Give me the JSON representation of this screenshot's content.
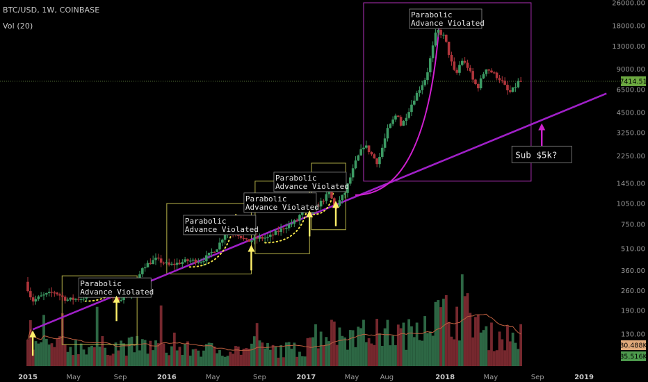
{
  "header": {
    "symbol": "BTC/USD, 1W, COINBASE",
    "indicator": "Vol (20)"
  },
  "colors": {
    "background": "#000000",
    "up": "#3c9a63",
    "down": "#b0353b",
    "trendline": "#a020c8",
    "annotation_box_yellow": "#b8b44a",
    "annotation_box_magenta": "#b030b8",
    "arrow_yellow": "#fff06a",
    "arrow_magenta": "#cc22cc",
    "price_badge": "#6ca840",
    "volume_ma": "#c06040"
  },
  "chart_data": {
    "type": "candlestick",
    "title": "BTC/USD, 1W, COINBASE",
    "y_scale": "log",
    "y_ticks": [
      "26000.00",
      "18000.00",
      "13000.00",
      "9000.00",
      "6500.00",
      "4500.00",
      "3250.00",
      "2250.00",
      "1450.00",
      "1050.00",
      "750.00",
      "510.00",
      "360.00",
      "260.00",
      "190.00",
      "130.00"
    ],
    "x_ticks": [
      {
        "label": "2015",
        "year": true,
        "date": "2015-01-01"
      },
      {
        "label": "May",
        "year": false,
        "date": "2015-05-01"
      },
      {
        "label": "Sep",
        "year": false,
        "date": "2015-09-01"
      },
      {
        "label": "2016",
        "year": true,
        "date": "2016-01-01"
      },
      {
        "label": "May",
        "year": false,
        "date": "2016-05-01"
      },
      {
        "label": "Sep",
        "year": false,
        "date": "2016-09-01"
      },
      {
        "label": "2017",
        "year": true,
        "date": "2017-01-01"
      },
      {
        "label": "May",
        "year": false,
        "date": "2017-05-01"
      },
      {
        "label": "Aug",
        "year": false,
        "date": "2017-08-01"
      },
      {
        "label": "2018",
        "year": true,
        "date": "2018-01-01"
      },
      {
        "label": "May",
        "year": false,
        "date": "2018-05-01"
      },
      {
        "label": "Sep",
        "year": false,
        "date": "2018-09-01"
      },
      {
        "label": "2019",
        "year": true,
        "date": "2019-01-01"
      }
    ],
    "price_path_key": [
      [
        "2015-01-01",
        300
      ],
      [
        "2015-01-20",
        220
      ],
      [
        "2015-02-15",
        240
      ],
      [
        "2015-03-20",
        255
      ],
      [
        "2015-04-20",
        225
      ],
      [
        "2015-06-01",
        230
      ],
      [
        "2015-07-10",
        280
      ],
      [
        "2015-08-01",
        285
      ],
      [
        "2015-08-20",
        225
      ],
      [
        "2015-09-20",
        235
      ],
      [
        "2015-10-15",
        265
      ],
      [
        "2015-11-05",
        380
      ],
      [
        "2015-12-10",
        430
      ],
      [
        "2016-01-15",
        390
      ],
      [
        "2016-03-01",
        420
      ],
      [
        "2016-04-10",
        420
      ],
      [
        "2016-05-20",
        520
      ],
      [
        "2016-06-15",
        700
      ],
      [
        "2016-07-10",
        655
      ],
      [
        "2016-08-05",
        570
      ],
      [
        "2016-09-01",
        600
      ],
      [
        "2016-10-01",
        610
      ],
      [
        "2016-11-10",
        710
      ],
      [
        "2016-12-15",
        800
      ],
      [
        "2017-01-03",
        1000
      ],
      [
        "2017-01-15",
        880
      ],
      [
        "2017-02-20",
        1100
      ],
      [
        "2017-03-10",
        1250
      ],
      [
        "2017-03-25",
        980
      ],
      [
        "2017-04-20",
        1250
      ],
      [
        "2017-05-20",
        2100
      ],
      [
        "2017-06-10",
        2700
      ],
      [
        "2017-07-15",
        2000
      ],
      [
        "2017-08-10",
        3400
      ],
      [
        "2017-09-05",
        4500
      ],
      [
        "2017-09-15",
        3600
      ],
      [
        "2017-10-20",
        5700
      ],
      [
        "2017-11-20",
        8000
      ],
      [
        "2017-12-17",
        17000
      ],
      [
        "2018-01-07",
        15000
      ],
      [
        "2018-01-20",
        11000
      ],
      [
        "2018-02-05",
        8000
      ],
      [
        "2018-02-20",
        10500
      ],
      [
        "2018-03-10",
        9200
      ],
      [
        "2018-03-25",
        7200
      ],
      [
        "2018-04-05",
        6800
      ],
      [
        "2018-04-25",
        9200
      ],
      [
        "2018-05-15",
        8400
      ],
      [
        "2018-06-05",
        7500
      ],
      [
        "2018-06-25",
        6100
      ],
      [
        "2018-07-10",
        6700
      ],
      [
        "2018-07-20",
        7414.51
      ]
    ],
    "last_price": "7414.51",
    "volume": {
      "last": "80.488K",
      "ma": "85.516K"
    },
    "trendline": {
      "from": [
        "2015-01-14",
        140
      ],
      "to": [
        "2019-03-01",
        6100
      ]
    },
    "parabolas": [
      {
        "from": [
          "2015-06-01",
          220
        ],
        "to": [
          "2015-08-25",
          305
        ]
      },
      {
        "from": [
          "2016-03-01",
          380
        ],
        "to": [
          "2016-07-01",
          900
        ]
      },
      {
        "from": [
          "2016-09-15",
          560
        ],
        "to": [
          "2017-01-05",
          1000
        ]
      },
      {
        "from": [
          "2017-01-20",
          880
        ],
        "to": [
          "2017-03-15",
          1350
        ]
      },
      {
        "from": [
          "2017-05-10",
          1200
        ],
        "to": [
          "2017-12-17",
          19000
        ]
      }
    ],
    "annotations": [
      {
        "text": [
          "Parabolic",
          "Advance Violated"
        ],
        "box": {
          "d0": "2015-04-01",
          "d1": "2015-10-15",
          "p0": 110,
          "p1": 330
        }
      },
      {
        "text": [
          "Parabolic",
          "Advance Violated"
        ],
        "box": {
          "d0": "2016-01-01",
          "d1": "2016-08-10",
          "p0": 340,
          "p1": 1050
        }
      },
      {
        "text": [
          "Parabolic",
          "Advance Violated"
        ],
        "box": {
          "d0": "2016-08-20",
          "d1": "2017-01-10",
          "p0": 470,
          "p1": 1500
        }
      },
      {
        "text": [
          "Parabolic",
          "Advance Violated"
        ],
        "box": {
          "d0": "2017-01-15",
          "d1": "2017-04-15",
          "p0": 690,
          "p1": 2000
        }
      },
      {
        "text": [
          "Parabolic",
          "Advance Violated"
        ],
        "box": {
          "d0": "2017-06-01",
          "d1": "2018-08-15",
          "p0": 1500,
          "p1": 26000
        }
      }
    ],
    "arrows": [
      {
        "date": "2015-01-14",
        "p0": 92,
        "p1": 135
      },
      {
        "date": "2015-08-22",
        "p0": 160,
        "p1": 235
      },
      {
        "date": "2016-08-10",
        "p0": 360,
        "p1": 530
      },
      {
        "date": "2017-01-10",
        "p0": 620,
        "p1": 920
      },
      {
        "date": "2017-03-20",
        "p0": 730,
        "p1": 1070
      }
    ],
    "callout": {
      "text": "Sub $5k?",
      "date": "2018-09-12",
      "price": 2300,
      "arrow_to": 3700
    }
  }
}
